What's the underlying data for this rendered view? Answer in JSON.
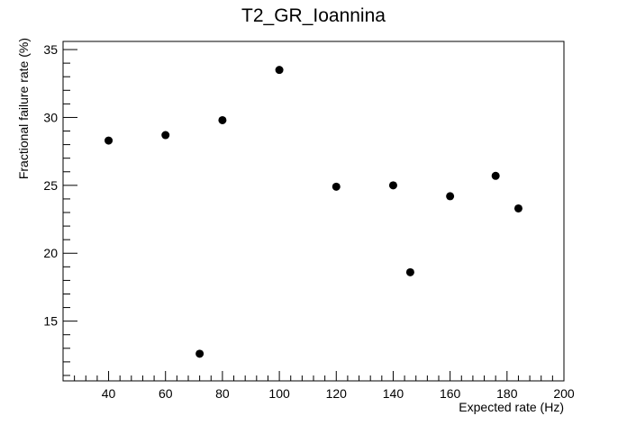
{
  "chart_data": {
    "type": "scatter",
    "title": "T2_GR_Ioannina",
    "xlabel": "Expected rate (Hz)",
    "ylabel": "Fractional failure rate (%)",
    "xlim": [
      24,
      200
    ],
    "ylim": [
      10.6,
      35.6
    ],
    "x_ticks": [
      40,
      60,
      80,
      100,
      120,
      140,
      160,
      180,
      200
    ],
    "y_ticks": [
      15,
      20,
      25,
      30,
      35
    ],
    "grid": false,
    "marker_color": "#000000",
    "series": [
      {
        "points": [
          {
            "x": 40,
            "y": 28.3
          },
          {
            "x": 60,
            "y": 28.7
          },
          {
            "x": 72,
            "y": 12.6
          },
          {
            "x": 80,
            "y": 29.8
          },
          {
            "x": 100,
            "y": 33.5
          },
          {
            "x": 120,
            "y": 24.9
          },
          {
            "x": 140,
            "y": 25.0
          },
          {
            "x": 146,
            "y": 18.6
          },
          {
            "x": 160,
            "y": 24.2
          },
          {
            "x": 176,
            "y": 25.7
          },
          {
            "x": 184,
            "y": 23.3
          }
        ]
      }
    ]
  }
}
